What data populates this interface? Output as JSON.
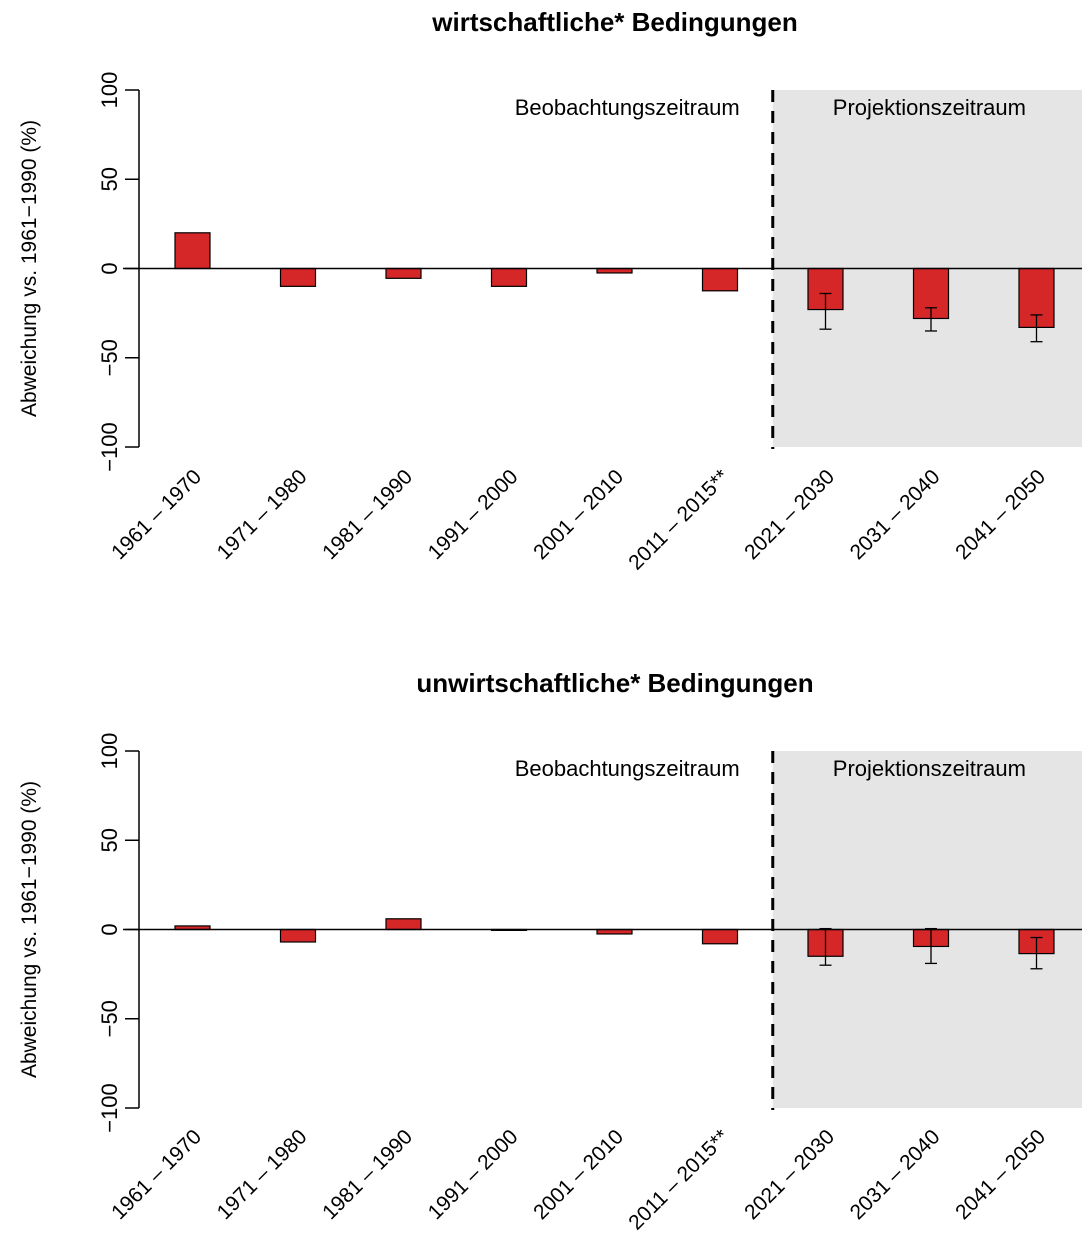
{
  "chart_data": [
    {
      "type": "bar",
      "title": "wirtschaftliche* Bedingungen",
      "ylabel": "Abweichung vs. 1961−1990 (%)",
      "xlabel": "",
      "categories": [
        "1961 – 1970",
        "1971 – 1980",
        "1981 – 1990",
        "1991 – 2000",
        "2001 – 2010",
        "2011 – 2015**",
        "2021 – 2030",
        "2031 – 2040",
        "2041 – 2050"
      ],
      "values": [
        20,
        -10,
        -5.5,
        -10,
        -2.5,
        -12.5,
        -23,
        -28,
        -33
      ],
      "error_low": [
        null,
        null,
        null,
        null,
        null,
        null,
        -34,
        -35,
        -41
      ],
      "error_high": [
        null,
        null,
        null,
        null,
        null,
        null,
        -14,
        -22,
        -26
      ],
      "ylim": [
        -100,
        100
      ],
      "yticks": [
        "−100",
        "−50",
        "0",
        "50",
        "100"
      ],
      "observation_label": "Beobachtungszeitraum",
      "projection_label": "Projektionszeitraum",
      "projection_start_index": 6,
      "bar_color": "#d62728",
      "shade_color": "#e5e5e5"
    },
    {
      "type": "bar",
      "title": "unwirtschaftliche* Bedingungen",
      "ylabel": "Abweichung vs. 1961−1990 (%)",
      "xlabel": "",
      "categories": [
        "1961 – 1970",
        "1971 – 1980",
        "1981 – 1990",
        "1991 – 2000",
        "2001 – 2010",
        "2011 – 2015**",
        "2021 – 2030",
        "2031 – 2040",
        "2041 – 2050"
      ],
      "values": [
        2,
        -7,
        6,
        -0.5,
        -2.5,
        -8,
        -15,
        -9.5,
        -13.5
      ],
      "error_low": [
        null,
        null,
        null,
        null,
        null,
        null,
        -20,
        -19,
        -22
      ],
      "error_high": [
        null,
        null,
        null,
        null,
        null,
        null,
        0.5,
        0.5,
        -4.5
      ],
      "ylim": [
        -100,
        100
      ],
      "yticks": [
        "−100",
        "−50",
        "0",
        "50",
        "100"
      ],
      "observation_label": "Beobachtungszeitraum",
      "projection_label": "Projektionszeitraum",
      "projection_start_index": 6,
      "bar_color": "#d62728",
      "shade_color": "#e5e5e5"
    }
  ]
}
